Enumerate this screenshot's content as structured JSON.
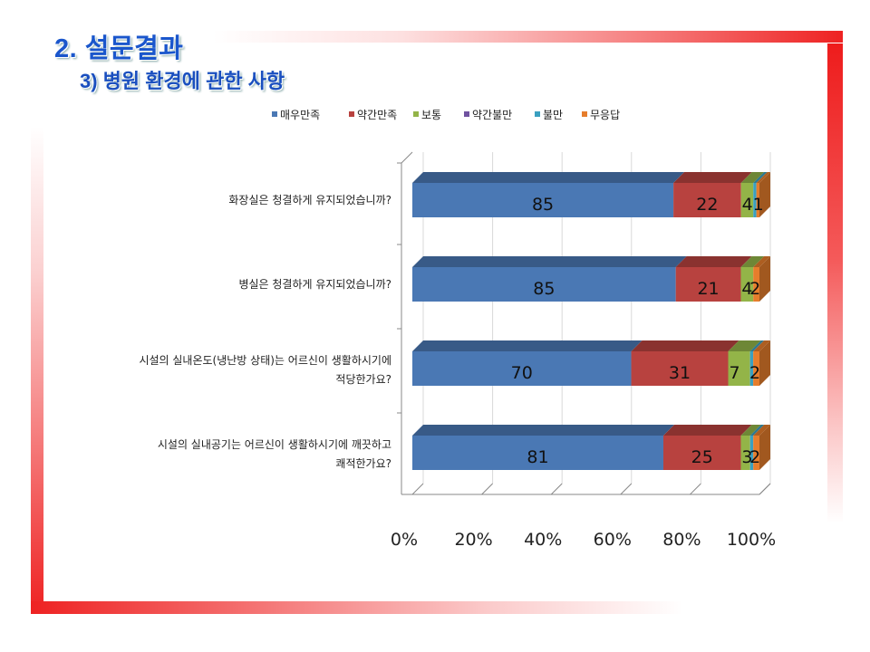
{
  "slide": {
    "title": "2. 설문결과",
    "subtitle": "3) 병원 환경에 관한 사항"
  },
  "chart_data": {
    "type": "bar",
    "orientation": "horizontal",
    "stacked": "percent",
    "categories": [
      [
        "화장실은 청결하게 유지되었습니까?"
      ],
      [
        "병실은 청결하게 유지되었습니까?"
      ],
      [
        "시설의 실내온도(냉난방 상태)는 어르신이 생활하시기에",
        "적당한가요?"
      ],
      [
        "시설의 실내공기는 어르신이 생활하시기에 깨끗하고",
        "쾌적한가요?"
      ]
    ],
    "series": [
      {
        "name": "매우만족",
        "color": "#4a78b4",
        "values": [
          85,
          85,
          70,
          81
        ]
      },
      {
        "name": "약간만족",
        "color": "#b8423f",
        "values": [
          22,
          21,
          31,
          25
        ]
      },
      {
        "name": "보통",
        "color": "#93b448",
        "values": [
          4,
          4,
          7,
          3
        ]
      },
      {
        "name": "약간불만",
        "color": "#7052a0",
        "values": [
          0,
          0,
          0,
          0
        ]
      },
      {
        "name": "불만",
        "color": "#3aa0c0",
        "values": [
          1,
          0,
          1,
          1
        ]
      },
      {
        "name": "무응답",
        "color": "#e67d2c",
        "values": [
          1,
          2,
          2,
          2
        ]
      }
    ],
    "data_labels": [
      [
        "85",
        "22",
        "4",
        "1"
      ],
      [
        "85",
        "21",
        "4",
        "2"
      ],
      [
        "70",
        "31",
        "7",
        "2"
      ],
      [
        "81",
        "25",
        "3",
        "2"
      ]
    ],
    "x_ticks": [
      "0%",
      "20%",
      "40%",
      "60%",
      "80%",
      "100%"
    ],
    "xlim": [
      0,
      100
    ],
    "legend_position": "top",
    "gridlines": true,
    "style": "3d"
  }
}
